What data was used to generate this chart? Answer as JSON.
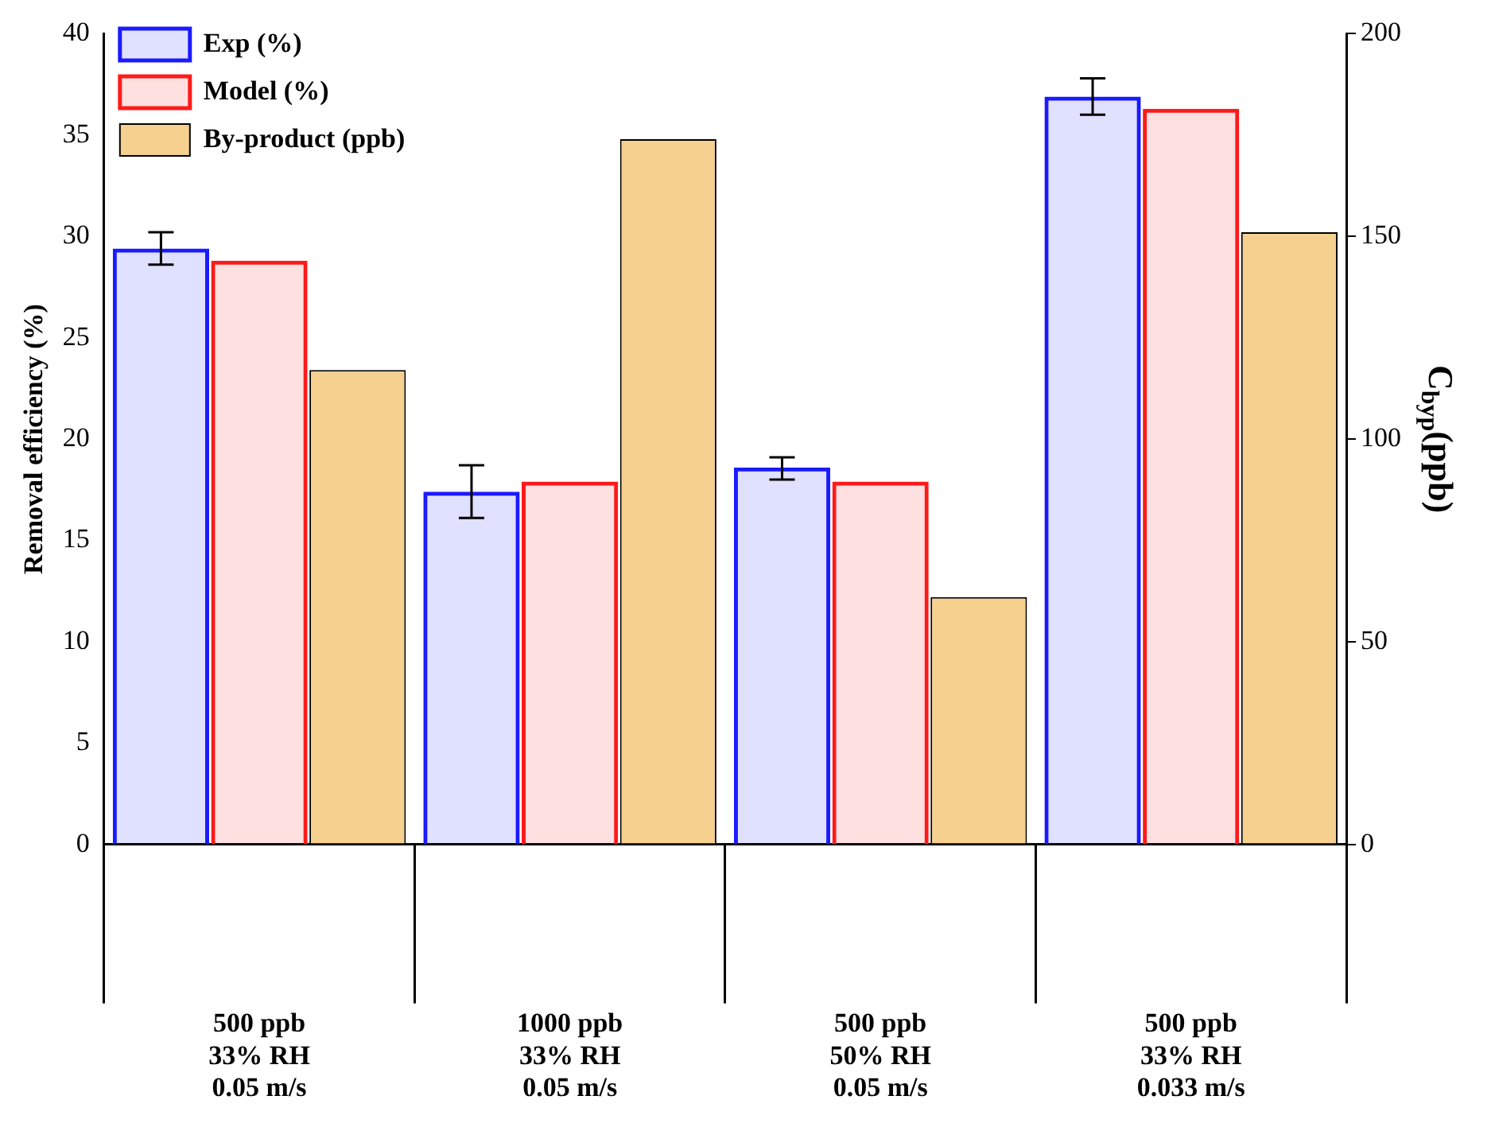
{
  "chart_data": {
    "type": "bar",
    "ylabel": "Removal efficiency (%)",
    "y2label": "C$_{byp}$(ppb)",
    "categories": [
      "500 ppb\n33% RH\n0.05 m/s",
      "1000 ppb\n33% RH\n0.05 m/s",
      "500 ppb\n50% RH\n0.05 m/s",
      "500 ppb\n33% RH\n0.033 m/s"
    ],
    "series": [
      {
        "name": "Exp (%)",
        "color": "#1a1aff",
        "values": [
          29.4,
          17.4,
          18.6,
          36.9
        ],
        "errors": [
          [
            28.6,
            30.2
          ],
          [
            16.1,
            18.7
          ],
          [
            18.0,
            19.1
          ],
          [
            36.0,
            37.8
          ]
        ]
      },
      {
        "name": "Model (%)",
        "color": "#ff1a1a",
        "values": [
          28.8,
          17.9,
          17.9,
          36.3
        ]
      },
      {
        "name": "By-product (ppb)",
        "color": "#f5d08f",
        "values": [
          117,
          174,
          61,
          151
        ],
        "axis": "y2"
      }
    ],
    "ylim": [
      0,
      40
    ],
    "yticks": [
      0,
      5,
      10,
      15,
      20,
      25,
      30,
      35,
      40
    ],
    "y2lim": [
      0,
      200
    ],
    "y2ticks": [
      0,
      50,
      100,
      150,
      200
    ],
    "grid": false,
    "legend": "top left"
  }
}
